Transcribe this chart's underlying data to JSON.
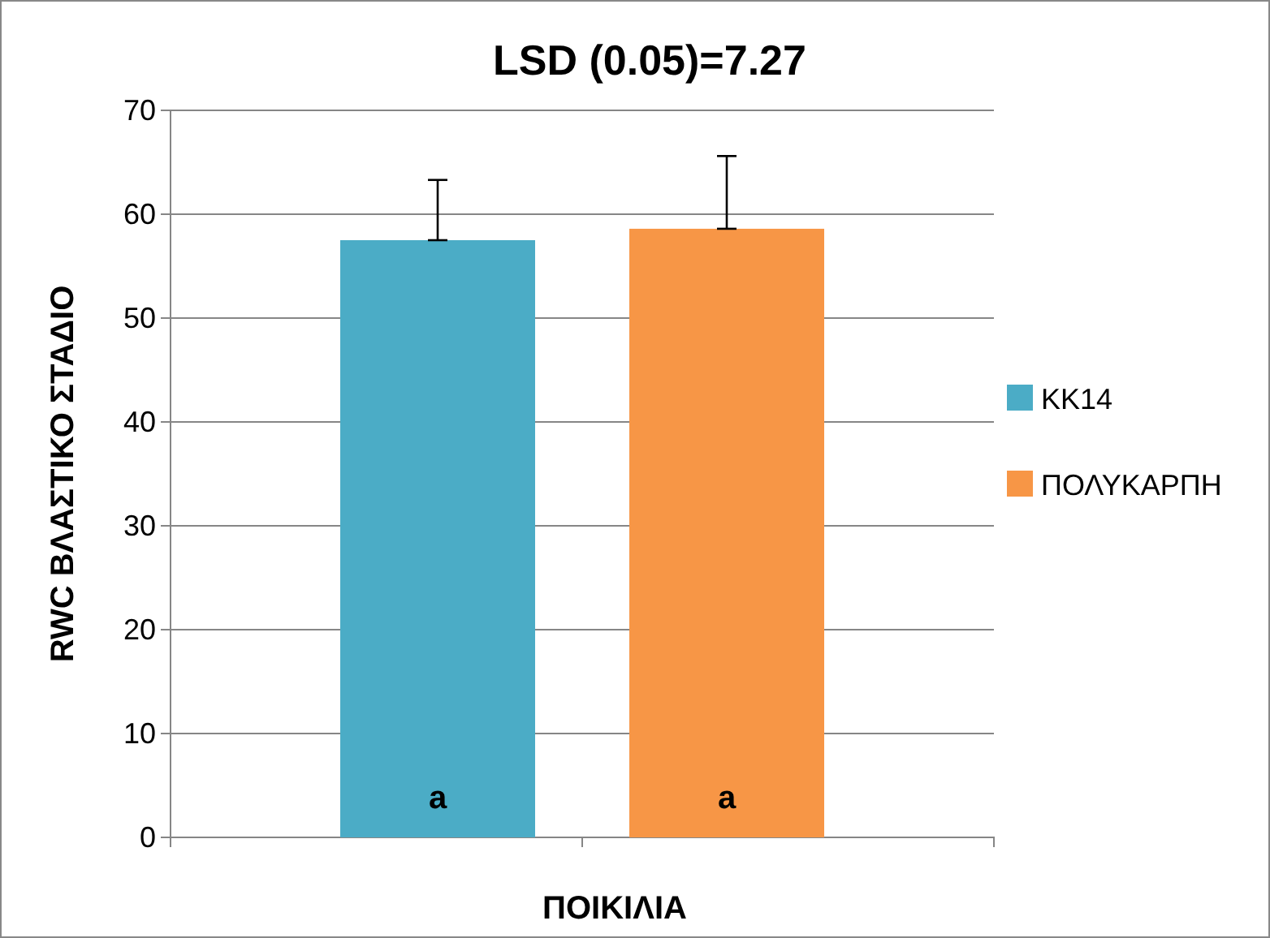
{
  "chart_data": {
    "type": "bar",
    "title": "LSD (0.05)=7.27",
    "xlabel": "ΠΟΙΚΙΛΙΑ",
    "ylabel": "RWC ΒΛΑΣΤΙΚΟ ΣΤΑΔΙΟ",
    "categories": [
      null
    ],
    "series": [
      {
        "name": "KK14",
        "color": "#4bacc6",
        "values": [
          57.5
        ],
        "errors": [
          [
            57.5,
            63.3
          ]
        ]
      },
      {
        "name": "ΠΟΛΥΚΑΡΠΗ",
        "color": "#f79646",
        "values": [
          58.6
        ],
        "errors": [
          [
            58.6,
            65.6
          ]
        ]
      }
    ],
    "annotations": [
      "a",
      "a"
    ],
    "ylim": [
      0,
      70
    ],
    "yticks": [
      0,
      10,
      20,
      30,
      40,
      50,
      60,
      70
    ],
    "grid": "y",
    "legend": "right"
  }
}
